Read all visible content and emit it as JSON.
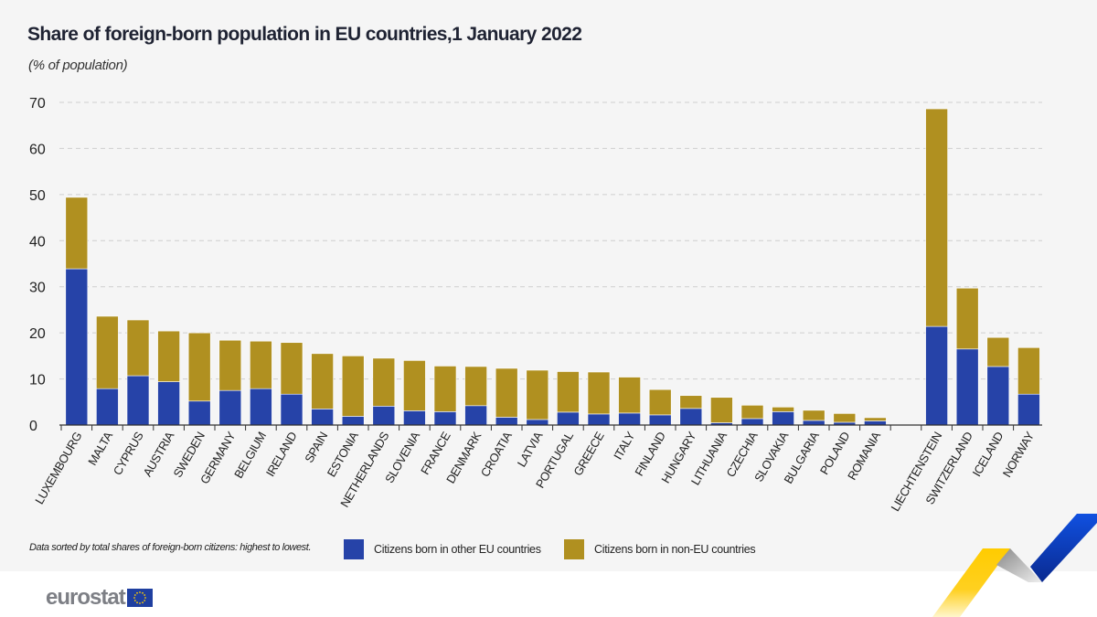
{
  "header": {
    "title": "Share of foreign-born population in EU countries,1 January 2022",
    "subtitle": "(% of population)"
  },
  "footer": {
    "note": "Data sorted by total shares of foreign-born citizens: highest to lowest.",
    "logo": "eurostat"
  },
  "colors": {
    "eu": "#2643a8",
    "non_eu": "#b09020",
    "background": "#f5f5f5"
  },
  "chart_data": {
    "type": "bar",
    "stacked": true,
    "title": "Share of foreign-born population in EU countries,1 January 2022",
    "ylabel": "(% of population)",
    "ylim": [
      0,
      70
    ],
    "yticks": [
      0,
      10,
      20,
      30,
      40,
      50,
      60,
      70
    ],
    "grid": true,
    "legend": "bottom",
    "categories": [
      "LUXEMBOURG",
      "MALTA",
      "CYPRUS",
      "AUSTRIA",
      "SWEDEN",
      "GERMANY",
      "BELGIUM",
      "IRELAND",
      "SPAIN",
      "ESTONIA",
      "NETHERLANDS",
      "SLOVENIA",
      "FRANCE",
      "DENMARK",
      "CROATIA",
      "LATVIA",
      "PORTUGAL",
      "GREECE",
      "ITALY",
      "FINLAND",
      "HUNGARY",
      "LITHUANIA",
      "CZECHIA",
      "SLOVAKIA",
      "BULGARIA",
      "POLAND",
      "ROMANIA",
      "",
      "LIECHTENSTEIN",
      "SWITZERLAND",
      "ICELAND",
      "NORWAY"
    ],
    "series": [
      {
        "name": "Citizens born in other EU countries",
        "values": [
          33.9,
          7.9,
          10.7,
          9.4,
          5.2,
          7.5,
          7.9,
          6.7,
          3.5,
          1.9,
          4.1,
          3.1,
          2.9,
          4.2,
          1.7,
          1.2,
          2.8,
          2.4,
          2.6,
          2.2,
          3.6,
          0.5,
          1.4,
          2.9,
          1.0,
          0.6,
          0.9,
          null,
          21.4,
          16.5,
          12.7,
          6.7
        ]
      },
      {
        "name": "Citizens born in non-EU countries",
        "values": [
          15.5,
          15.7,
          12.1,
          11.0,
          14.8,
          10.9,
          10.3,
          11.2,
          12.0,
          13.1,
          10.4,
          10.9,
          9.9,
          8.5,
          10.6,
          10.7,
          8.8,
          9.1,
          7.8,
          5.5,
          2.8,
          5.5,
          2.9,
          1.0,
          2.2,
          1.9,
          0.7,
          null,
          47.2,
          13.2,
          6.3,
          10.1
        ]
      }
    ]
  }
}
